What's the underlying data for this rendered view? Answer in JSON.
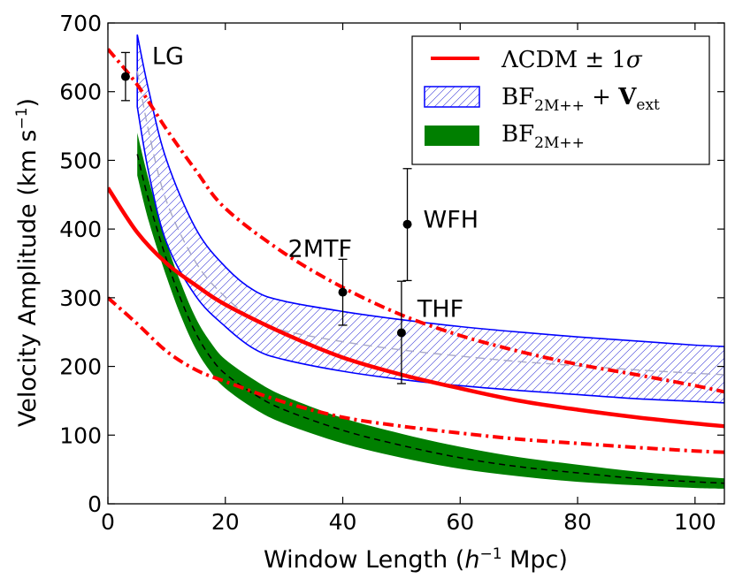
{
  "chart_data": {
    "type": "line",
    "xlabel": "Window Length (h⁻¹ Mpc)",
    "ylabel": "Velocity Amplitude (km s⁻¹)",
    "xlim": [
      0,
      105
    ],
    "ylim": [
      0,
      700
    ],
    "x_ticks": [
      "0",
      "20",
      "40",
      "60",
      "80",
      "100"
    ],
    "y_ticks": [
      "0",
      "100",
      "200",
      "300",
      "400",
      "500",
      "600",
      "700"
    ],
    "legend_position": "top-right",
    "colors": {
      "lcdm": "#ff0000",
      "bf_ext": "#0000ff",
      "bf": "#007f00"
    },
    "series": [
      {
        "name": "ΛCDM ± 1σ (mean)",
        "x": [
          0,
          5,
          10,
          15,
          20,
          30,
          40,
          50,
          60,
          70,
          80,
          90,
          100,
          105
        ],
        "values": [
          460,
          395,
          350,
          318,
          290,
          248,
          213,
          188,
          168,
          150,
          137,
          126,
          117,
          113
        ]
      },
      {
        "name": "ΛCDM upper",
        "x": [
          0,
          5,
          10,
          15,
          20,
          30,
          40,
          50,
          60,
          70,
          80,
          90,
          100,
          105
        ],
        "values": [
          662,
          610,
          545,
          485,
          430,
          365,
          315,
          275,
          245,
          222,
          203,
          188,
          172,
          163
        ]
      },
      {
        "name": "ΛCDM lower",
        "x": [
          0,
          5,
          10,
          15,
          20,
          30,
          40,
          50,
          60,
          70,
          80,
          90,
          100,
          105
        ],
        "values": [
          300,
          262,
          222,
          195,
          178,
          148,
          126,
          113,
          103,
          94,
          88,
          82,
          77,
          75
        ]
      },
      {
        "name": "BF2M++ + Vext upper",
        "x": [
          5,
          7,
          10,
          15,
          20,
          25,
          30,
          40,
          50,
          60,
          70,
          80,
          90,
          100,
          105
        ],
        "values": [
          683,
          600,
          500,
          400,
          345,
          310,
          295,
          280,
          268,
          258,
          250,
          243,
          237,
          231,
          229
        ]
      },
      {
        "name": "BF2M++ + Vext lower",
        "x": [
          5,
          7,
          10,
          15,
          20,
          25,
          30,
          40,
          50,
          60,
          70,
          80,
          90,
          100,
          105
        ],
        "values": [
          578,
          480,
          380,
          302,
          258,
          225,
          210,
          193,
          181,
          172,
          165,
          159,
          153,
          149,
          147
        ]
      },
      {
        "name": "BF2M++ + Vext mean",
        "x": [
          5,
          7,
          10,
          15,
          20,
          25,
          30,
          40,
          50,
          60,
          70,
          80,
          90,
          100,
          105
        ],
        "values": [
          630,
          540,
          440,
          351,
          301,
          268,
          252,
          236,
          224,
          215,
          207,
          201,
          195,
          190,
          188
        ]
      },
      {
        "name": "BF2M++ upper",
        "x": [
          5,
          7,
          10,
          12.5,
          15,
          17.5,
          20,
          25,
          30,
          40,
          50,
          60,
          70,
          80,
          90,
          100,
          105
        ],
        "values": [
          540,
          470,
          380,
          320,
          270,
          235,
          210,
          180,
          157,
          125,
          102,
          83,
          68,
          57,
          47,
          40,
          37
        ]
      },
      {
        "name": "BF2M++ lower",
        "x": [
          5,
          7,
          10,
          12.5,
          15,
          17.5,
          20,
          25,
          30,
          40,
          50,
          60,
          70,
          80,
          90,
          100,
          105
        ],
        "values": [
          478,
          410,
          330,
          272,
          225,
          192,
          168,
          138,
          117,
          88,
          67,
          51,
          40,
          32,
          27,
          23,
          22
        ]
      },
      {
        "name": "BF2M++ mean",
        "x": [
          5,
          7,
          10,
          12.5,
          15,
          17.5,
          20,
          25,
          30,
          40,
          50,
          60,
          70,
          80,
          90,
          100,
          105
        ],
        "values": [
          509,
          440,
          355,
          296,
          248,
          213,
          189,
          159,
          137,
          107,
          85,
          67,
          54,
          45,
          37,
          32,
          30
        ]
      }
    ],
    "points": [
      {
        "label": "LG",
        "x": 3,
        "y": 622,
        "err_low": 35,
        "err_high": 35
      },
      {
        "label": "2MTF",
        "x": 40,
        "y": 308,
        "err_low": 48,
        "err_high": 48
      },
      {
        "label": "WFH",
        "x": 51,
        "y": 407,
        "err_low": 82,
        "err_high": 81
      },
      {
        "label": "THF",
        "x": 50,
        "y": 249,
        "err_low": 74,
        "err_high": 75
      }
    ],
    "legend": [
      {
        "key": "lcdm",
        "text": "ΛCDM ± 1σ"
      },
      {
        "key": "bf_ext",
        "text": "BF2M++ + Vext"
      },
      {
        "key": "bf",
        "text": "BF2M++"
      }
    ]
  }
}
